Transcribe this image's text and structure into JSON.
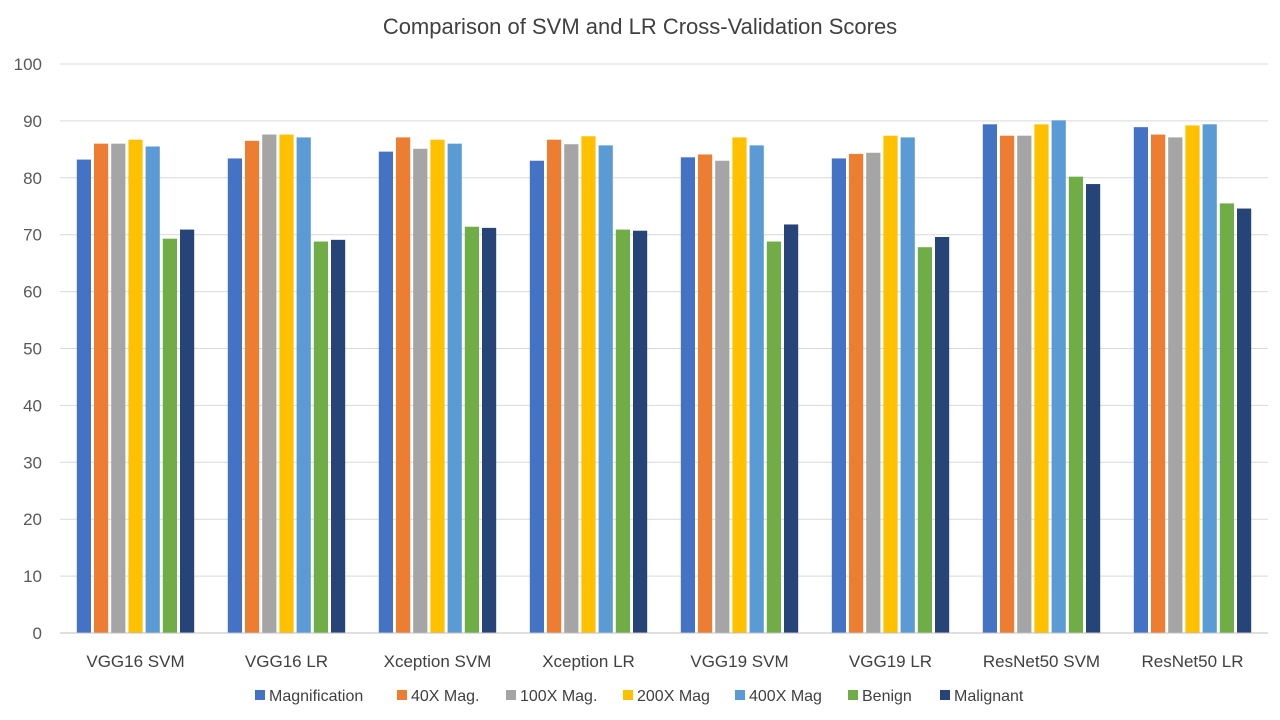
{
  "chart_data": {
    "type": "bar",
    "title": "Comparison of SVM and LR Cross-Validation Scores",
    "xlabel": "",
    "ylabel": "",
    "ylim": [
      0,
      100
    ],
    "yticks": [
      0,
      10,
      20,
      30,
      40,
      50,
      60,
      70,
      80,
      90,
      100
    ],
    "grid": true,
    "legend_position": "bottom",
    "categories": [
      "VGG16 SVM",
      "VGG16 LR",
      "Xception SVM",
      "Xception LR",
      "VGG19 SVM",
      "VGG19 LR",
      "ResNet50 SVM",
      "ResNet50 LR"
    ],
    "series": [
      {
        "name": "Magnification",
        "color": "#4472C4",
        "values": [
          83.2,
          83.4,
          84.6,
          83.0,
          83.6,
          83.4,
          89.4,
          88.9
        ]
      },
      {
        "name": "40X Mag.",
        "color": "#ED7D31",
        "values": [
          86.0,
          86.5,
          87.1,
          86.7,
          84.1,
          84.2,
          87.4,
          87.6
        ]
      },
      {
        "name": "100X Mag.",
        "color": "#A5A5A5",
        "values": [
          86.0,
          87.6,
          85.1,
          85.9,
          83.0,
          84.4,
          87.4,
          87.1
        ]
      },
      {
        "name": "200X Mag",
        "color": "#FFC000",
        "values": [
          86.7,
          87.6,
          86.7,
          87.3,
          87.1,
          87.4,
          89.4,
          89.2
        ]
      },
      {
        "name": "400X Mag",
        "color": "#5B9BD5",
        "values": [
          85.5,
          87.1,
          86.0,
          85.7,
          85.7,
          87.1,
          90.1,
          89.4
        ]
      },
      {
        "name": "Benign",
        "color": "#70AD47",
        "values": [
          69.3,
          68.8,
          71.4,
          70.9,
          68.8,
          67.8,
          80.2,
          75.5
        ]
      },
      {
        "name": "Malignant",
        "color": "#264478",
        "values": [
          70.9,
          69.1,
          71.2,
          70.7,
          71.8,
          69.6,
          78.9,
          74.6
        ]
      }
    ]
  }
}
